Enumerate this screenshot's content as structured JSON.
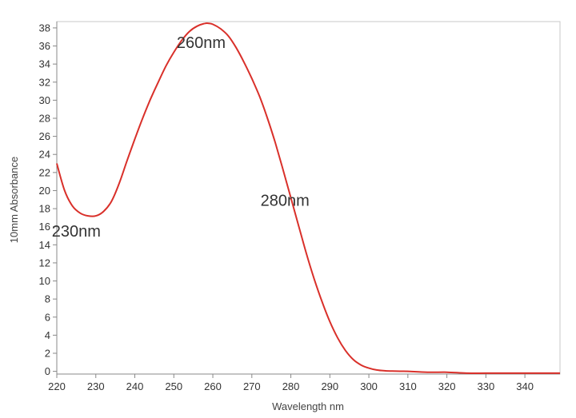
{
  "chart_data": {
    "type": "line",
    "title": "",
    "xlabel": "Wavelength nm",
    "ylabel": "10mm Absorbance",
    "xlim": [
      220,
      349
    ],
    "ylim": [
      -0.3,
      38.7
    ],
    "xticks": [
      220,
      230,
      240,
      250,
      260,
      270,
      280,
      290,
      300,
      310,
      320,
      330,
      340
    ],
    "yticks": [
      0,
      2,
      4,
      6,
      8,
      10,
      12,
      14,
      16,
      18,
      20,
      22,
      24,
      26,
      28,
      30,
      32,
      34,
      36,
      38
    ],
    "grid": false,
    "legend": "none",
    "colors": {
      "line": "#d9302a",
      "axis": "#888888",
      "text": "#333333"
    },
    "series": [
      {
        "x": [
          220,
          222,
          224,
          226,
          228,
          230,
          232,
          234,
          236,
          238,
          240,
          242,
          244,
          246,
          248,
          250,
          252,
          254,
          256,
          258,
          259,
          260,
          262,
          264,
          266,
          268,
          270,
          272,
          274,
          276,
          278,
          280,
          282,
          284,
          286,
          288,
          290,
          292,
          294,
          296,
          298,
          300,
          302,
          304,
          306,
          308,
          310,
          315,
          320,
          325,
          330,
          335,
          340,
          345,
          349
        ],
        "y": [
          23.0,
          20.0,
          18.3,
          17.5,
          17.2,
          17.2,
          17.7,
          18.8,
          20.8,
          23.3,
          25.7,
          28.0,
          30.1,
          32.0,
          33.8,
          35.3,
          36.6,
          37.6,
          38.2,
          38.5,
          38.5,
          38.4,
          37.9,
          37.1,
          35.8,
          34.2,
          32.4,
          30.4,
          28.0,
          25.3,
          22.3,
          19.2,
          16.1,
          13.0,
          10.2,
          7.7,
          5.5,
          3.7,
          2.3,
          1.3,
          0.7,
          0.35,
          0.15,
          0.06,
          0.03,
          0.01,
          0.0,
          -0.1,
          -0.1,
          -0.2,
          -0.2,
          -0.2,
          -0.2,
          -0.2,
          -0.2
        ]
      }
    ],
    "annotations": [
      {
        "text": "260nm",
        "x": 257.0,
        "y": 35.8
      },
      {
        "text": "280nm",
        "x": 278.5,
        "y": 18.3
      },
      {
        "text": "230nm",
        "x": 225.0,
        "y": 14.9
      }
    ]
  }
}
